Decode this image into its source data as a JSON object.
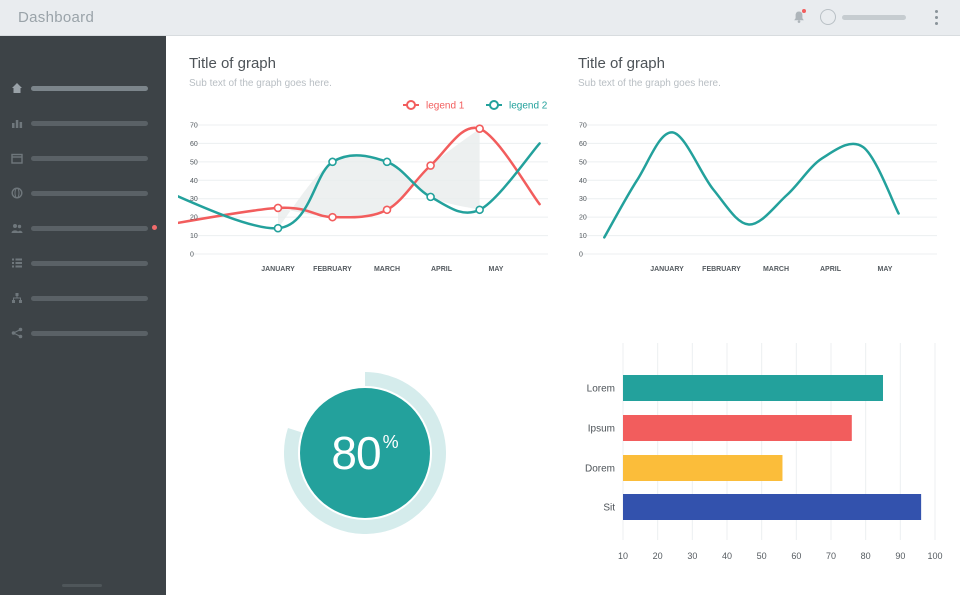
{
  "header": {
    "title": "Dashboard"
  },
  "sidebar": {
    "items": [
      "home",
      "stats",
      "calendar",
      "globe",
      "users",
      "list",
      "hierarchy",
      "share"
    ]
  },
  "line_chart": {
    "title": "Title of graph",
    "subtitle": "Sub text of the graph goes here.",
    "legend": [
      {
        "label": "legend 1",
        "color": "#f25d5d"
      },
      {
        "label": "legend 2",
        "color": "#23a19c"
      }
    ]
  },
  "single_line_chart": {
    "title": "Title of graph",
    "subtitle": "Sub text of the graph goes here."
  },
  "donut": {
    "value": "80",
    "unit": "%",
    "fraction": 0.8,
    "color": "#23a19c",
    "track_color": "#d5ecec"
  },
  "chart_data": [
    {
      "type": "line",
      "title": "Title of graph",
      "subtitle": "Sub text of the graph goes here.",
      "categories": [
        "JANUARY",
        "FEBRUARY",
        "MARCH",
        "APRIL",
        "MAY"
      ],
      "y_ticks": [
        0,
        10,
        20,
        30,
        40,
        50,
        60,
        70
      ],
      "ylim": [
        0,
        70
      ],
      "legend_position": "top-right",
      "series": [
        {
          "name": "legend 1",
          "color": "#f25d5d",
          "x": [
            -2.4,
            0,
            1,
            2,
            2.8,
            3.7,
            4.8
          ],
          "values": [
            14,
            25,
            20,
            24,
            48,
            68,
            27
          ],
          "markers": [
            0,
            1,
            2,
            3,
            4,
            5
          ]
        },
        {
          "name": "legend 2",
          "color": "#23a19c",
          "x": [
            -2.6,
            0,
            1,
            2,
            2.8,
            3.7,
            4.8
          ],
          "values": [
            41,
            14,
            50,
            50,
            31,
            24,
            60
          ],
          "markers": [
            1,
            2,
            3,
            4,
            5
          ]
        }
      ]
    },
    {
      "type": "line",
      "title": "Title of graph",
      "subtitle": "Sub text of the graph goes here.",
      "categories": [
        "JANUARY",
        "FEBRUARY",
        "MARCH",
        "APRIL",
        "MAY"
      ],
      "y_ticks": [
        0,
        10,
        20,
        30,
        40,
        50,
        60,
        70
      ],
      "ylim": [
        0,
        70
      ],
      "series": [
        {
          "color": "#23a19c",
          "x": [
            -1.15,
            -0.55,
            0.1,
            0.85,
            1.5,
            2.2,
            2.85,
            3.6,
            4.25
          ],
          "values": [
            9,
            40,
            66,
            35,
            16,
            32,
            52,
            58,
            22
          ]
        }
      ]
    },
    {
      "type": "bar",
      "orientation": "horizontal",
      "categories": [
        "Lorem",
        "Ipsum",
        "Dorem",
        "Sit"
      ],
      "values": [
        85,
        76,
        56,
        96
      ],
      "colors": [
        "#23a19c",
        "#f25d5d",
        "#fbbd3a",
        "#3352ad"
      ],
      "x_ticks": [
        10,
        20,
        30,
        40,
        50,
        60,
        70,
        80,
        90,
        100
      ],
      "xlim": [
        10,
        100
      ]
    }
  ]
}
